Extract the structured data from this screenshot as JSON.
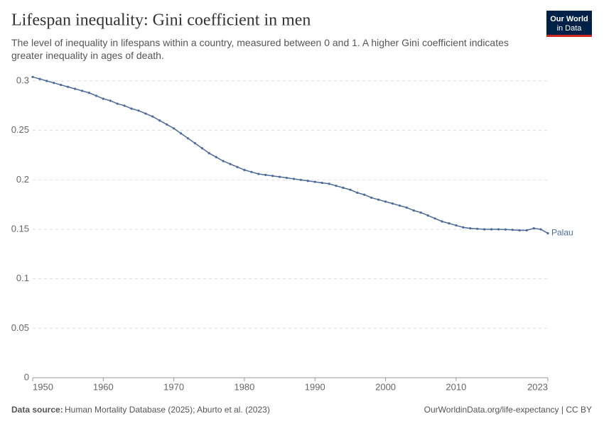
{
  "header": {
    "title": "Lifespan inequality: Gini coefficient in men",
    "subtitle": "The level of inequality in lifespans within a country, measured between 0 and 1. A higher Gini coefficient indicates greater inequality in ages of death.",
    "logo": [
      "Our World",
      "in Data"
    ]
  },
  "chart_data": {
    "type": "line",
    "x": [
      1950,
      1951,
      1952,
      1953,
      1954,
      1955,
      1956,
      1957,
      1958,
      1959,
      1960,
      1961,
      1962,
      1963,
      1964,
      1965,
      1966,
      1967,
      1968,
      1969,
      1970,
      1971,
      1972,
      1973,
      1974,
      1975,
      1976,
      1977,
      1978,
      1979,
      1980,
      1981,
      1982,
      1983,
      1984,
      1985,
      1986,
      1987,
      1988,
      1989,
      1990,
      1991,
      1992,
      1993,
      1994,
      1995,
      1996,
      1997,
      1998,
      1999,
      2000,
      2001,
      2002,
      2003,
      2004,
      2005,
      2006,
      2007,
      2008,
      2009,
      2010,
      2011,
      2012,
      2013,
      2014,
      2015,
      2016,
      2017,
      2018,
      2019,
      2020,
      2021,
      2022,
      2023
    ],
    "series": [
      {
        "name": "Palau",
        "color": "#4c6a9c",
        "values": [
          0.304,
          0.302,
          0.3,
          0.298,
          0.296,
          0.294,
          0.292,
          0.29,
          0.288,
          0.285,
          0.282,
          0.28,
          0.277,
          0.275,
          0.272,
          0.27,
          0.267,
          0.264,
          0.26,
          0.256,
          0.252,
          0.247,
          0.242,
          0.237,
          0.232,
          0.227,
          0.223,
          0.219,
          0.216,
          0.213,
          0.21,
          0.208,
          0.206,
          0.205,
          0.204,
          0.203,
          0.202,
          0.201,
          0.2,
          0.199,
          0.198,
          0.197,
          0.196,
          0.194,
          0.192,
          0.19,
          0.187,
          0.185,
          0.182,
          0.18,
          0.178,
          0.176,
          0.174,
          0.172,
          0.169,
          0.167,
          0.164,
          0.161,
          0.158,
          0.156,
          0.154,
          0.152,
          0.151,
          0.1505,
          0.15,
          0.15,
          0.15,
          0.1498,
          0.1495,
          0.149,
          0.149,
          0.151,
          0.15,
          0.146
        ]
      }
    ],
    "xlim": [
      1950,
      2023
    ],
    "xticks": [
      1950,
      1960,
      1970,
      1980,
      1990,
      2000,
      2010,
      2023
    ],
    "ylim": [
      0,
      0.3
    ],
    "yticks": [
      0,
      0.05,
      0.1,
      0.15,
      0.2,
      0.25,
      0.3
    ],
    "grid": true
  },
  "footer": {
    "source_label": "Data source:",
    "source": "Human Mortality Database (2025); Aburto et al. (2023)",
    "link": "OurWorldinData.org/life-expectancy | CC BY"
  }
}
